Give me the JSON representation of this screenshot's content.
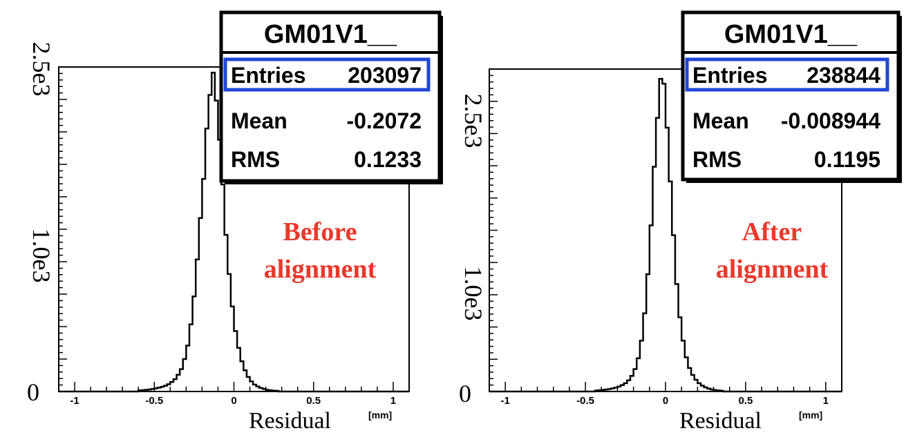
{
  "chart_data": [
    {
      "type": "histogram",
      "annotation": [
        "Before",
        "alignment"
      ],
      "annotation_color": "#e8392b",
      "xlabel": "Residual",
      "xunit": "[mm]",
      "xlim": [
        -1.1,
        1.1
      ],
      "xticks": [
        "-1",
        "-0.5",
        "0",
        "0.5",
        "1"
      ],
      "ylim": [
        0,
        2900
      ],
      "yticks": [
        "0",
        "1.0e3",
        "2.5e3"
      ],
      "stats": {
        "title": "GM01V1__",
        "rows": [
          {
            "label": "Entries",
            "value": "203097"
          },
          {
            "label": "Mean",
            "value": "-0.2072"
          },
          {
            "label": "RMS",
            "value": "0.1233"
          }
        ],
        "highlight_color": "#1f46d6"
      },
      "bin_width": 0.02,
      "bins_start": -0.6,
      "values": [
        10,
        12,
        15,
        18,
        22,
        28,
        35,
        42,
        52,
        65,
        85,
        110,
        150,
        200,
        290,
        410,
        600,
        850,
        1180,
        1550,
        1900,
        2350,
        2650,
        2850,
        2600,
        2250,
        1850,
        1400,
        1050,
        760,
        540,
        390,
        270,
        190,
        130,
        90,
        62,
        45,
        32,
        22,
        15,
        11,
        8,
        6
      ]
    },
    {
      "type": "histogram",
      "annotation": [
        "After",
        "alignment"
      ],
      "annotation_color": "#e8392b",
      "xlabel": "Residual",
      "xunit": "[mm]",
      "xlim": [
        -1.1,
        1.1
      ],
      "xticks": [
        "-1",
        "-0.5",
        "0",
        "0.5",
        "1"
      ],
      "ylim": [
        0,
        3300
      ],
      "yticks": [
        "0",
        "1.0e3",
        "2.5e3"
      ],
      "stats": {
        "title": "GM01V1__",
        "rows": [
          {
            "label": "Entries",
            "value": "238844"
          },
          {
            "label": "Mean",
            "value": "-0.008944"
          },
          {
            "label": "RMS",
            "value": "0.1195"
          }
        ],
        "highlight_color": "#1f46d6"
      },
      "bin_width": 0.02,
      "bins_start": -0.44,
      "values": [
        10,
        13,
        16,
        20,
        25,
        32,
        40,
        50,
        65,
        85,
        115,
        160,
        230,
        340,
        520,
        800,
        1200,
        1700,
        2300,
        2800,
        3200,
        3150,
        2700,
        2150,
        1600,
        1100,
        760,
        520,
        350,
        240,
        170,
        120,
        85,
        60,
        42,
        30,
        21,
        15,
        11,
        8
      ]
    }
  ]
}
